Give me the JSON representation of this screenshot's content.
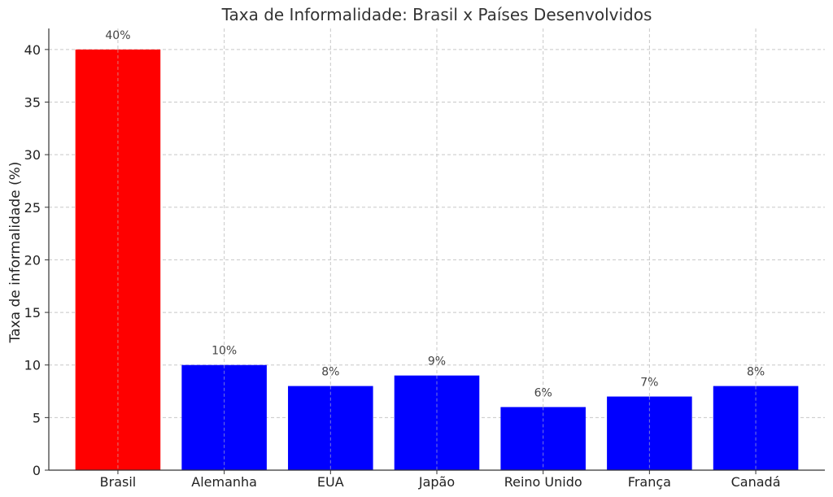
{
  "chart_data": {
    "type": "bar",
    "title": "Taxa de Informalidade: Brasil x Países Desenvolvidos",
    "xlabel": "",
    "ylabel": "Taxa de informalidade (%)",
    "categories": [
      "Brasil",
      "Alemanha",
      "EUA",
      "Japão",
      "Reino Unido",
      "França",
      "Canadá"
    ],
    "values": [
      40,
      10,
      8,
      9,
      6,
      7,
      8
    ],
    "value_labels": [
      "40%",
      "10%",
      "8%",
      "9%",
      "6%",
      "7%",
      "8%"
    ],
    "colors": [
      "#ff0000",
      "#0000ff",
      "#0000ff",
      "#0000ff",
      "#0000ff",
      "#0000ff",
      "#0000ff"
    ],
    "ylim": [
      0,
      42
    ],
    "yticks": [
      0,
      5,
      10,
      15,
      20,
      25,
      30,
      35,
      40
    ],
    "grid": true,
    "legend": "none"
  }
}
